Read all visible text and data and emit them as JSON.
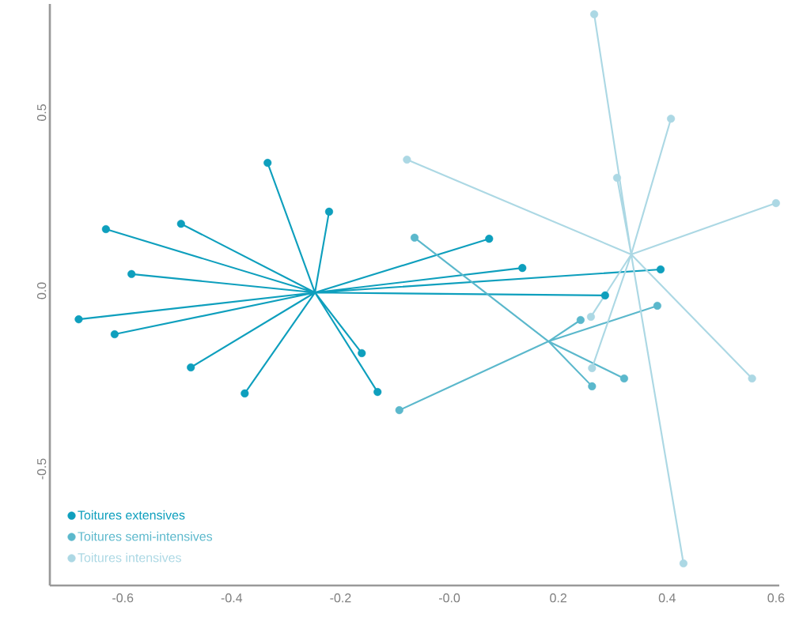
{
  "chart_data": {
    "type": "scatter",
    "xlim": [
      -0.734,
      0.606
    ],
    "ylim": [
      -0.827,
      0.805
    ],
    "xticks": [
      -0.6,
      -0.4,
      -0.2,
      {
        "value": 0,
        "label": "-0.0"
      },
      0.2,
      0.4,
      0.6
    ],
    "yticks": [
      -0.5,
      {
        "value": 0,
        "label": "0.0"
      },
      0.5
    ],
    "grid": false,
    "legend": "bottom left",
    "series": [
      {
        "type": "line",
        "marker": "none",
        "color": "#0e9fbd",
        "x": [
          -0.247,
          -0.631,
          -0.247,
          -0.493,
          -0.247,
          -0.334,
          -0.247,
          -0.221,
          -0.247,
          -0.584,
          -0.247,
          -0.681,
          -0.247,
          -0.615,
          -0.247,
          -0.475,
          -0.247,
          -0.376,
          -0.247,
          -0.161,
          -0.247,
          -0.132,
          -0.247,
          0.073,
          -0.247,
          0.134,
          -0.247,
          0.286,
          -0.247,
          0.388
        ],
        "values": [
          -0.005,
          0.173,
          -0.005,
          0.188,
          -0.005,
          0.359,
          -0.005,
          0.222,
          -0.005,
          0.047,
          -0.005,
          -0.08,
          -0.005,
          -0.122,
          -0.005,
          -0.215,
          -0.005,
          -0.288,
          -0.005,
          -0.175,
          -0.005,
          -0.284,
          -0.005,
          0.146,
          -0.005,
          0.064,
          -0.005,
          -0.013,
          -0.005,
          0.06
        ]
      },
      {
        "type": "line",
        "marker": "none",
        "color": "#5bb8cc",
        "x": [
          0.182,
          -0.064,
          0.182,
          -0.092,
          0.182,
          0.241,
          0.182,
          0.382,
          0.182,
          0.262,
          0.182,
          0.321
        ],
        "values": [
          -0.142,
          0.149,
          -0.142,
          -0.335,
          -0.142,
          -0.082,
          -0.142,
          -0.042,
          -0.142,
          -0.268,
          -0.142,
          -0.246
        ]
      },
      {
        "type": "line",
        "marker": "none",
        "color": "#acd8e4",
        "x": [
          0.334,
          0.266,
          0.334,
          0.407,
          0.334,
          0.308,
          0.334,
          -0.078,
          0.334,
          0.6,
          0.334,
          0.26,
          0.334,
          0.262,
          0.334,
          0.556,
          0.334,
          0.43
        ],
        "values": [
          0.102,
          0.776,
          0.102,
          0.483,
          0.102,
          0.317,
          0.102,
          0.368,
          0.102,
          0.246,
          0.102,
          -0.073,
          0.102,
          -0.217,
          0.102,
          -0.246,
          0.102,
          -0.765
        ]
      },
      {
        "type": "scatter",
        "marker": "circle",
        "name": "Toitures extensives",
        "color": "#0e9fbd",
        "x": [
          -0.631,
          -0.493,
          -0.334,
          -0.221,
          -0.584,
          -0.681,
          -0.615,
          -0.475,
          -0.376,
          -0.161,
          -0.132,
          0.073,
          0.134,
          0.286,
          0.388
        ],
        "values": [
          0.173,
          0.188,
          0.359,
          0.222,
          0.047,
          -0.08,
          -0.122,
          -0.215,
          -0.288,
          -0.175,
          -0.284,
          0.146,
          0.064,
          -0.013,
          0.06
        ]
      },
      {
        "type": "scatter",
        "marker": "circle",
        "name": "Toitures semi-intensives",
        "color": "#5bb8cc",
        "x": [
          -0.064,
          -0.092,
          0.241,
          0.382,
          0.262,
          0.321
        ],
        "values": [
          0.149,
          -0.335,
          -0.082,
          -0.042,
          -0.268,
          -0.246
        ]
      },
      {
        "type": "scatter",
        "marker": "circle",
        "name": "Toitures intensives",
        "color": "#acd8e4",
        "x": [
          0.266,
          0.407,
          0.308,
          -0.078,
          0.6,
          0.26,
          0.262,
          0.556,
          0.43
        ],
        "values": [
          0.776,
          0.483,
          0.317,
          0.368,
          0.246,
          -0.073,
          -0.217,
          -0.246,
          -0.765
        ]
      }
    ]
  }
}
